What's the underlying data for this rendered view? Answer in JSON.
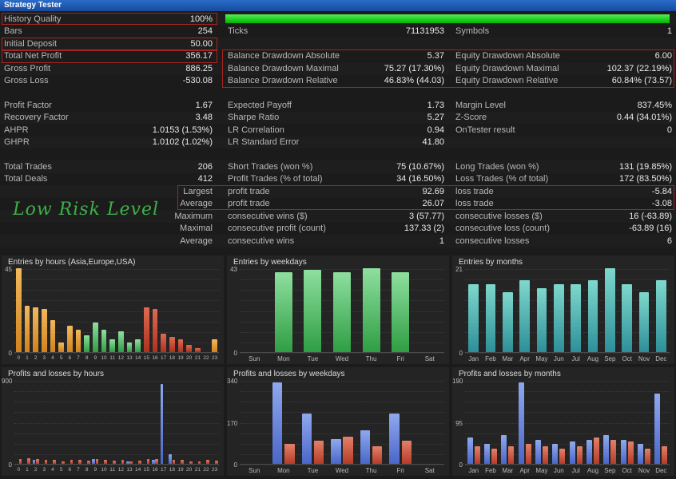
{
  "title_bar": {
    "title": "Strategy Tester"
  },
  "risk_note": {
    "text": "Low Risk Level",
    "color": "#3fae4a"
  },
  "colors": {
    "titlebar_blue": "#1e55a8",
    "highlight_box_red": "#a82420",
    "progress_green": "#00c400",
    "label_gray": "#b8b8b8",
    "value_white": "#e9e9e9",
    "background": "#1b1b1b"
  },
  "palettes": {
    "orange": [
      "#f2b95c",
      "#d2821c"
    ],
    "green": [
      "#8edf9e",
      "#2f9e44"
    ],
    "teal": [
      "#7ed8cc",
      "#2d8f99"
    ],
    "blue": [
      "#8fa9ee",
      "#4a66c8"
    ],
    "loss": [
      "#e4806a",
      "#b43c28"
    ],
    "red": [
      "#df6a50",
      "#b03020"
    ]
  },
  "stats": {
    "rows": [
      {
        "c1": {
          "label": "History Quality",
          "value": "100%"
        }
      },
      {
        "c1": {
          "label": "Bars",
          "value": "254"
        },
        "c2": {
          "label": "Ticks",
          "value": "71131953"
        },
        "c3": {
          "label": "Symbols",
          "value": "1"
        }
      },
      {
        "c1": {
          "label": "Initial Deposit",
          "value": "50.00"
        }
      },
      {
        "c1": {
          "label": "Total Net Profit",
          "value": "356.17"
        },
        "c2": {
          "label": "Balance Drawdown Absolute",
          "value": "5.37"
        },
        "c3": {
          "label": "Equity Drawdown Absolute",
          "value": "6.00"
        }
      },
      {
        "c1": {
          "label": "Gross Profit",
          "value": "886.25"
        },
        "c2": {
          "label": "Balance Drawdown Maximal",
          "value": "75.27 (17.30%)"
        },
        "c3": {
          "label": "Equity Drawdown Maximal",
          "value": "102.37 (22.19%)"
        }
      },
      {
        "c1": {
          "label": "Gross Loss",
          "value": "-530.08"
        },
        "c2": {
          "label": "Balance Drawdown Relative",
          "value": "46.83% (44.03)"
        },
        "c3": {
          "label": "Equity Drawdown Relative",
          "value": "60.84% (73.57)"
        }
      },
      {
        "gap": true
      },
      {
        "c1": {
          "label": "Profit Factor",
          "value": "1.67"
        },
        "c2": {
          "label": "Expected Payoff",
          "value": "1.73"
        },
        "c3": {
          "label": "Margin Level",
          "value": "837.45%"
        }
      },
      {
        "c1": {
          "label": "Recovery Factor",
          "value": "3.48"
        },
        "c2": {
          "label": "Sharpe Ratio",
          "value": "5.27"
        },
        "c3": {
          "label": "Z-Score",
          "value": "0.44 (34.01%)"
        }
      },
      {
        "c1": {
          "label": "AHPR",
          "value": "1.0153 (1.53%)"
        },
        "c2": {
          "label": "LR Correlation",
          "value": "0.94"
        },
        "c3": {
          "label": "OnTester result",
          "value": "0"
        }
      },
      {
        "c1": {
          "label": "GHPR",
          "value": "1.0102 (1.02%)"
        },
        "c2": {
          "label": "LR Standard Error",
          "value": "41.80"
        }
      },
      {
        "gap": true
      },
      {
        "c1": {
          "label": "Total Trades",
          "value": "206"
        },
        "c2": {
          "label": "Short Trades (won %)",
          "value": "75 (10.67%)"
        },
        "c3": {
          "label": "Long Trades (won %)",
          "value": "131 (19.85%)"
        }
      },
      {
        "c1": {
          "label": "Total Deals",
          "value": "412"
        },
        "c2": {
          "label": "Profit Trades (% of total)",
          "value": "34 (16.50%)"
        },
        "c3": {
          "label": "Loss Trades (% of total)",
          "value": "172 (83.50%)"
        }
      },
      {
        "c1": {
          "label": "",
          "value": "Largest",
          "value_muted": true
        },
        "c2": {
          "label": "profit trade",
          "value": "92.69"
        },
        "c3": {
          "label": "loss trade",
          "value": "-5.84"
        }
      },
      {
        "c1": {
          "label": "",
          "value": "Average",
          "value_muted": true
        },
        "c2": {
          "label": "profit trade",
          "value": "26.07"
        },
        "c3": {
          "label": "loss trade",
          "value": "-3.08"
        }
      },
      {
        "c1": {
          "label": "",
          "value": "Maximum",
          "value_muted": true
        },
        "c2": {
          "label": "consecutive wins ($)",
          "value": "3 (57.77)"
        },
        "c3": {
          "label": "consecutive losses ($)",
          "value": "16 (-63.89)"
        }
      },
      {
        "c1": {
          "label": "",
          "value": "Maximal",
          "value_muted": true
        },
        "c2": {
          "label": "consecutive profit (count)",
          "value": "137.33 (2)"
        },
        "c3": {
          "label": "consecutive loss (count)",
          "value": "-63.89 (16)"
        }
      },
      {
        "c1": {
          "label": "",
          "value": "Average",
          "value_muted": true
        },
        "c2": {
          "label": "consecutive wins",
          "value": "1"
        },
        "c3": {
          "label": "consecutive losses",
          "value": "6"
        }
      }
    ]
  },
  "chart_data": [
    {
      "type": "bar",
      "title": "Entries by hours (Asia,Europe,USA)",
      "categories": [
        "0",
        "1",
        "2",
        "3",
        "4",
        "5",
        "6",
        "7",
        "8",
        "9",
        "10",
        "11",
        "12",
        "13",
        "14",
        "15",
        "16",
        "17",
        "18",
        "19",
        "20",
        "21",
        "22",
        "23"
      ],
      "values": [
        45,
        25,
        24,
        23,
        17,
        5,
        14,
        12,
        9,
        16,
        12,
        7,
        11,
        5,
        7,
        24,
        23,
        10,
        8,
        7,
        4,
        2,
        0,
        7
      ],
      "bar_palettes": [
        "orange",
        "orange",
        "orange",
        "orange",
        "orange",
        "orange",
        "orange",
        "orange",
        "green",
        "green",
        "green",
        "green",
        "green",
        "green",
        "green",
        "red",
        "red",
        "red",
        "red",
        "red",
        "red",
        "red",
        "red",
        "orange"
      ],
      "ymax": 45,
      "yticks": [
        "45",
        "0"
      ]
    },
    {
      "type": "bar",
      "title": "Entries by weekdays",
      "categories": [
        "Sun",
        "Mon",
        "Tue",
        "Wed",
        "Thu",
        "Fri",
        "Sat"
      ],
      "values": [
        0,
        41,
        42,
        41,
        43,
        41,
        0
      ],
      "palette": "green",
      "ymax": 43,
      "yticks": [
        "43",
        "0"
      ]
    },
    {
      "type": "bar",
      "title": "Entries by months",
      "categories": [
        "Jan",
        "Feb",
        "Mar",
        "Apr",
        "May",
        "Jun",
        "Jul",
        "Aug",
        "Sep",
        "Oct",
        "Nov",
        "Dec"
      ],
      "values": [
        17,
        17,
        15,
        18,
        16,
        17,
        17,
        18,
        21,
        17,
        15,
        18
      ],
      "palette": "teal",
      "ymax": 21,
      "yticks": [
        "21",
        "0"
      ]
    },
    {
      "type": "bar",
      "title": "Profits and losses by hours",
      "categories": [
        "0",
        "1",
        "2",
        "3",
        "4",
        "5",
        "6",
        "7",
        "8",
        "9",
        "10",
        "11",
        "12",
        "13",
        "14",
        "15",
        "16",
        "17",
        "18",
        "19",
        "20",
        "21",
        "22",
        "23"
      ],
      "series": [
        {
          "name": "profit",
          "palette": "blue",
          "values": [
            0,
            0,
            40,
            0,
            0,
            0,
            0,
            0,
            0,
            50,
            0,
            0,
            0,
            30,
            0,
            0,
            40,
            860,
            105,
            0,
            0,
            0,
            0,
            0
          ]
        },
        {
          "name": "loss",
          "palette": "loss",
          "values": [
            50,
            60,
            50,
            45,
            40,
            25,
            45,
            40,
            35,
            50,
            45,
            35,
            40,
            30,
            35,
            55,
            50,
            0,
            45,
            40,
            30,
            25,
            40,
            35
          ]
        }
      ],
      "ymax": 900,
      "yticks": [
        "900",
        "0"
      ]
    },
    {
      "type": "bar",
      "title": "Profits and losses by weekdays",
      "categories": [
        "Sun",
        "Mon",
        "Tue",
        "Wed",
        "Thu",
        "Fri",
        "Sat"
      ],
      "series": [
        {
          "name": "profit",
          "palette": "blue",
          "values": [
            0,
            330,
            205,
            100,
            135,
            205,
            0
          ]
        },
        {
          "name": "loss",
          "palette": "loss",
          "values": [
            0,
            80,
            95,
            110,
            70,
            95,
            0
          ]
        }
      ],
      "ymax": 340,
      "yticks": [
        "340",
        "170",
        "0"
      ]
    },
    {
      "type": "bar",
      "title": "Profits and losses by months",
      "categories": [
        "Jan",
        "Feb",
        "Mar",
        "Apr",
        "May",
        "Jun",
        "Jul",
        "Aug",
        "Sep",
        "Oct",
        "Nov",
        "Dec"
      ],
      "series": [
        {
          "name": "profit",
          "palette": "blue",
          "values": [
            60,
            45,
            65,
            185,
            55,
            45,
            50,
            55,
            65,
            55,
            45,
            160
          ]
        },
        {
          "name": "loss",
          "palette": "loss",
          "values": [
            40,
            35,
            40,
            45,
            40,
            35,
            40,
            60,
            55,
            50,
            35,
            40
          ]
        }
      ],
      "ymax": 190,
      "yticks": [
        "190",
        "95",
        "0"
      ]
    }
  ]
}
